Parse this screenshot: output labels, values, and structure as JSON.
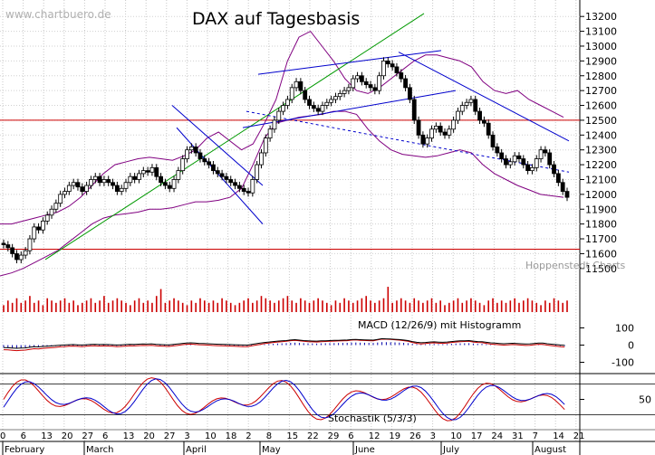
{
  "watermark": "www.chartbuero.de",
  "source_label": "Hoppenstedt Charts",
  "chart_data": [
    {
      "type": "candlestick",
      "title": "DAX auf Tagesbasis",
      "ylim": [
        11450,
        13250
      ],
      "y_ticks": [
        11500,
        11600,
        11700,
        11800,
        11900,
        12000,
        12100,
        12200,
        12300,
        12400,
        12500,
        12600,
        12700,
        12800,
        12900,
        13000,
        13100,
        13200
      ],
      "day_labels": [
        "0",
        "6",
        "13",
        "20",
        "27",
        "6",
        "13",
        "20",
        "27",
        "3",
        "10",
        "18",
        "2",
        "8",
        "15",
        "22",
        "29",
        "6",
        "12",
        "19",
        "26",
        "3",
        "10",
        "17",
        "24",
        "31",
        "7",
        "14",
        "21"
      ],
      "month_labels": [
        "February",
        "March",
        "April",
        "May",
        "June",
        "July",
        "August"
      ],
      "close": [
        11660,
        11640,
        11600,
        11560,
        11590,
        11620,
        11700,
        11780,
        11760,
        11820,
        11860,
        11900,
        11940,
        12000,
        12020,
        12060,
        12080,
        12050,
        12020,
        12060,
        12100,
        12120,
        12080,
        12100,
        12080,
        12060,
        12020,
        12040,
        12080,
        12120,
        12100,
        12140,
        12160,
        12150,
        12180,
        12120,
        12080,
        12060,
        12040,
        12100,
        12160,
        12240,
        12300,
        12320,
        12280,
        12240,
        12220,
        12200,
        12160,
        12140,
        12120,
        12100,
        12080,
        12060,
        12040,
        12020,
        12010,
        12100,
        12200,
        12280,
        12380,
        12440,
        12500,
        12560,
        12600,
        12640,
        12720,
        12760,
        12700,
        12640,
        12600,
        12580,
        12560,
        12600,
        12620,
        12640,
        12660,
        12680,
        12700,
        12720,
        12780,
        12800,
        12760,
        12740,
        12720,
        12700,
        12800,
        12900,
        12880,
        12860,
        12820,
        12780,
        12720,
        12640,
        12500,
        12400,
        12340,
        12380,
        12440,
        12460,
        12420,
        12400,
        12440,
        12500,
        12560,
        12600,
        12620,
        12640,
        12560,
        12500,
        12480,
        12400,
        12320,
        12280,
        12240,
        12200,
        12220,
        12260,
        12240,
        12200,
        12160,
        12180,
        12240,
        12300,
        12280,
        12200,
        12140,
        12080,
        12020,
        11980
      ],
      "bollinger": {
        "upper": [
          11800,
          11800,
          11820,
          11840,
          11860,
          11880,
          11920,
          11980,
          12060,
          12140,
          12200,
          12220,
          12240,
          12250,
          12240,
          12230,
          12260,
          12300,
          12380,
          12420,
          12360,
          12300,
          12340,
          12480,
          12640,
          12900,
          13060,
          13100,
          13000,
          12900,
          12780,
          12700,
          12680,
          12720,
          12780,
          12840,
          12900,
          12940,
          12940,
          12920,
          12900,
          12860,
          12760,
          12700,
          12680,
          12700,
          12640,
          12600,
          12560,
          12520
        ],
        "lower": [
          11450,
          11470,
          11500,
          11540,
          11580,
          11620,
          11680,
          11740,
          11800,
          11840,
          11860,
          11870,
          11880,
          11900,
          11900,
          11910,
          11930,
          11950,
          11950,
          11960,
          11980,
          12040,
          12200,
          12380,
          12480,
          12500,
          12520,
          12530,
          12540,
          12560,
          12560,
          12540,
          12440,
          12360,
          12300,
          12270,
          12260,
          12250,
          12260,
          12280,
          12300,
          12280,
          12200,
          12140,
          12100,
          12060,
          12030,
          12000,
          11990,
          11980
        ]
      },
      "horizontal_lines": [
        12500,
        11630
      ]
    },
    {
      "type": "bar",
      "name": "Volumen",
      "values": [
        3,
        5,
        4,
        6,
        4,
        5,
        7,
        4,
        5,
        3,
        6,
        5,
        4,
        5,
        6,
        4,
        5,
        3,
        4,
        5,
        6,
        4,
        5,
        7,
        4,
        5,
        6,
        5,
        4,
        3,
        5,
        6,
        4,
        5,
        4,
        7,
        10,
        4,
        5,
        6,
        5,
        4,
        3,
        5,
        4,
        6,
        5,
        4,
        5,
        4,
        6,
        5,
        4,
        3,
        4,
        5,
        6,
        4,
        5,
        7,
        6,
        5,
        4,
        5,
        6,
        7,
        5,
        4,
        6,
        5,
        4,
        5,
        6,
        5,
        4,
        3,
        5,
        4,
        6,
        5,
        4,
        5,
        6,
        7,
        5,
        4,
        5,
        6,
        11,
        4,
        5,
        6,
        5,
        4,
        6,
        5,
        4,
        5,
        6,
        4,
        5,
        3,
        4,
        5,
        6,
        4,
        5,
        6,
        5,
        4,
        3,
        5,
        6,
        4,
        5,
        4,
        5,
        6,
        4,
        5,
        6,
        5,
        4,
        3,
        5,
        4,
        6,
        5,
        4,
        5
      ]
    },
    {
      "type": "line",
      "title": "MACD (12/26/9) mit Histogramm",
      "ylim": [
        -150,
        150
      ],
      "y_ticks": [
        100,
        0,
        -100
      ]
    },
    {
      "type": "line",
      "title": "Stochastik  (5/3/3)",
      "ylim": [
        0,
        100
      ],
      "y_ticks": [
        50
      ]
    }
  ]
}
